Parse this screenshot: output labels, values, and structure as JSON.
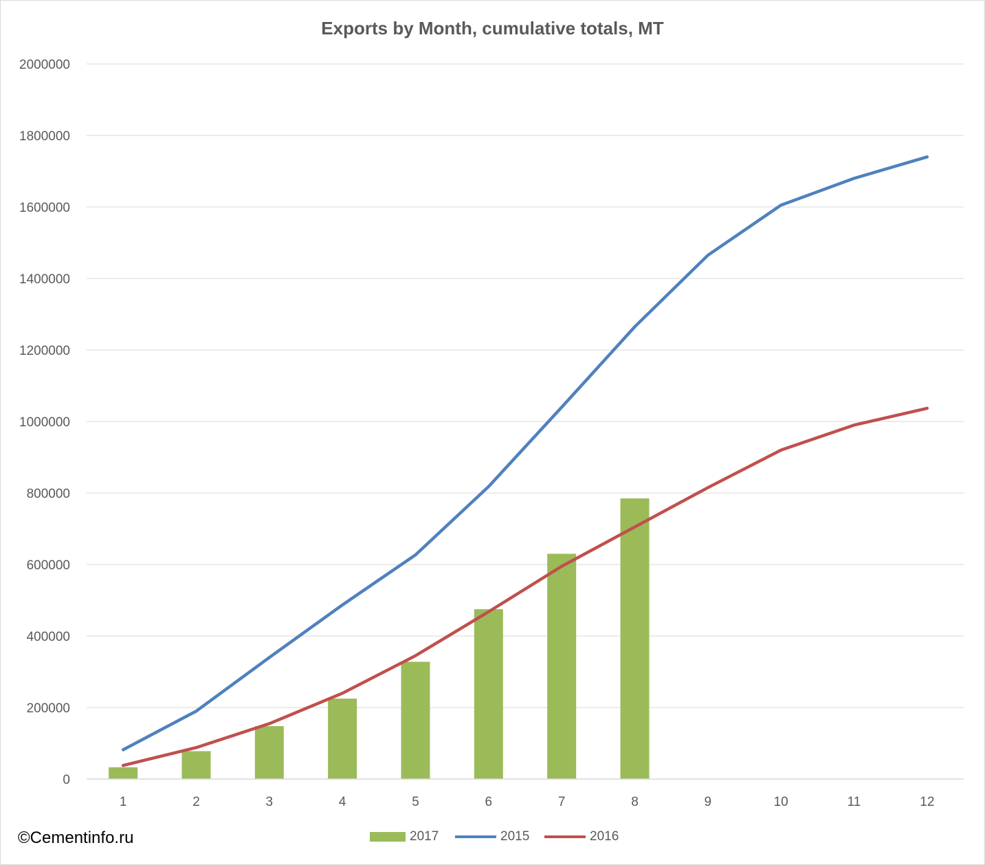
{
  "chart_data": {
    "type": "bar+line",
    "title": "Exports by Month, cumulative totals, MT",
    "categories": [
      "1",
      "2",
      "3",
      "4",
      "5",
      "6",
      "7",
      "8",
      "9",
      "10",
      "11",
      "12"
    ],
    "ylim": [
      0,
      2000000
    ],
    "yticks": [
      0,
      200000,
      400000,
      600000,
      800000,
      1000000,
      1200000,
      1400000,
      1600000,
      1800000,
      2000000
    ],
    "grid": true,
    "legend_position": "bottom",
    "series": [
      {
        "name": "2017",
        "kind": "bar",
        "color": "#9bbb59",
        "values": [
          33000,
          78000,
          148000,
          225000,
          328000,
          475000,
          630000,
          785000,
          null,
          null,
          null,
          null
        ]
      },
      {
        "name": "2015",
        "kind": "line",
        "color": "#4f81bd",
        "values": [
          82000,
          190000,
          340000,
          487000,
          627000,
          818000,
          1040000,
          1265000,
          1465000,
          1605000,
          1680000,
          1740000
        ]
      },
      {
        "name": "2016",
        "kind": "line",
        "color": "#c0504d",
        "values": [
          38000,
          88000,
          155000,
          240000,
          345000,
          468000,
          595000,
          705000,
          815000,
          920000,
          990000,
          1037000
        ]
      }
    ]
  },
  "credit": "©Cementinfo.ru"
}
